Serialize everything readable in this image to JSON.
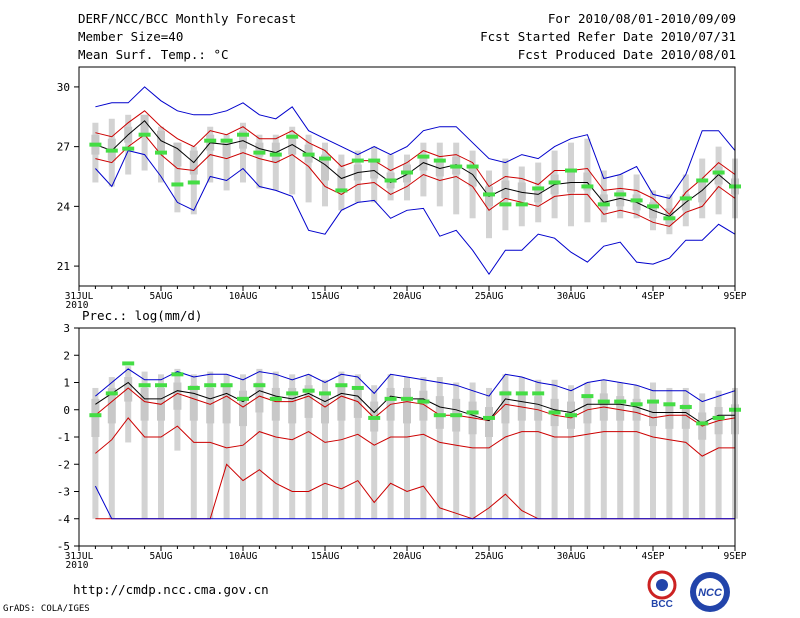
{
  "header": {
    "title": "DERF/NCC/BCC Monthly Forecast",
    "member_size": "Member Size=40",
    "variable": "Mean Surf. Temp.: °C",
    "period": "For 2010/08/01-2010/09/09",
    "started": "Fcst Started Refer Date 2010/07/31",
    "produced": "Fcst Produced Date 2010/08/01"
  },
  "footer": {
    "url": "http://cmdp.ncc.cma.gov.cn",
    "credit": "GrADS: COLA/IGES",
    "logo_left": "BCC",
    "logo_right": "NCC"
  },
  "colors": {
    "max_min": "#0000cc",
    "outer_band": "#cc0000",
    "mean": "#000000",
    "box": "#d3d3d3",
    "obs": "#44dd44"
  },
  "chart_data": [
    {
      "type": "line",
      "title": "Mean Surf. Temp.: °C",
      "ylim": [
        20,
        31
      ],
      "yticks": [
        21,
        24,
        27,
        30
      ],
      "xlim": [
        0,
        40
      ],
      "x_ticks": [
        {
          "x": 0,
          "label": "31JUL",
          "sub": "2010"
        },
        {
          "x": 5,
          "label": "5AUG"
        },
        {
          "x": 10,
          "label": "10AUG"
        },
        {
          "x": 15,
          "label": "15AUG"
        },
        {
          "x": 20,
          "label": "20AUG"
        },
        {
          "x": 25,
          "label": "25AUG"
        },
        {
          "x": 30,
          "label": "30AUG"
        },
        {
          "x": 35,
          "label": "4SEP"
        },
        {
          "x": 40,
          "label": "9SEP"
        }
      ],
      "x": [
        1,
        2,
        3,
        4,
        5,
        6,
        7,
        8,
        9,
        10,
        11,
        12,
        13,
        14,
        15,
        16,
        17,
        18,
        19,
        20,
        21,
        22,
        23,
        24,
        25,
        26,
        27,
        28,
        29,
        30,
        31,
        32,
        33,
        34,
        35,
        36,
        37,
        38,
        39,
        40
      ],
      "series": [
        {
          "name": "max",
          "color": "#0000cc",
          "values": [
            29.0,
            29.2,
            29.2,
            30.0,
            29.3,
            28.8,
            28.6,
            28.6,
            28.8,
            29.2,
            28.6,
            28.4,
            29.0,
            27.8,
            27.4,
            27.0,
            26.6,
            27.0,
            26.6,
            27.0,
            27.8,
            28.0,
            28.0,
            27.2,
            26.4,
            26.2,
            26.6,
            26.4,
            27.0,
            27.4,
            27.6,
            25.4,
            25.6,
            26.0,
            24.6,
            24.4,
            25.6,
            27.8,
            27.8,
            26.8
          ]
        },
        {
          "name": "upper",
          "color": "#cc0000",
          "values": [
            27.7,
            27.5,
            28.2,
            28.8,
            28.0,
            27.4,
            27.0,
            27.8,
            27.6,
            28.0,
            27.4,
            27.4,
            27.8,
            27.2,
            26.8,
            26.0,
            26.3,
            26.3,
            25.8,
            26.2,
            26.8,
            26.5,
            26.6,
            26.2,
            25.0,
            25.5,
            25.4,
            25.1,
            25.8,
            25.8,
            25.9,
            24.8,
            24.9,
            24.8,
            24.4,
            23.6,
            24.7,
            25.4,
            26.2,
            25.6
          ]
        },
        {
          "name": "mean",
          "color": "#000000",
          "values": [
            27.1,
            26.8,
            27.6,
            28.3,
            27.3,
            26.9,
            26.2,
            27.2,
            27.1,
            27.3,
            26.9,
            26.7,
            27.1,
            26.6,
            26.1,
            25.4,
            25.7,
            25.8,
            25.2,
            25.6,
            26.2,
            25.9,
            26.1,
            25.6,
            24.5,
            24.9,
            24.7,
            24.6,
            25.1,
            25.2,
            25.2,
            24.2,
            24.4,
            24.2,
            23.8,
            23.5,
            24.2,
            24.8,
            25.6,
            24.9
          ]
        },
        {
          "name": "lower",
          "color": "#cc0000",
          "values": [
            26.4,
            26.2,
            27.0,
            27.6,
            26.6,
            25.9,
            25.8,
            26.6,
            26.4,
            26.7,
            26.4,
            26.2,
            26.6,
            26.0,
            25.0,
            24.6,
            25.1,
            25.2,
            24.6,
            25.0,
            25.6,
            25.3,
            25.5,
            25.0,
            23.8,
            24.4,
            24.2,
            24.0,
            24.5,
            24.6,
            24.6,
            23.6,
            23.8,
            23.6,
            23.2,
            23.0,
            23.7,
            24.0,
            25.0,
            24.4
          ]
        },
        {
          "name": "min",
          "color": "#0000cc",
          "values": [
            25.9,
            25.0,
            26.8,
            26.6,
            25.5,
            24.2,
            23.8,
            25.5,
            25.3,
            25.9,
            25.0,
            24.8,
            24.5,
            22.8,
            22.6,
            23.8,
            24.2,
            24.3,
            23.4,
            23.8,
            23.9,
            22.5,
            22.8,
            21.8,
            20.6,
            21.8,
            21.8,
            22.6,
            22.4,
            21.7,
            21.2,
            22.0,
            22.2,
            21.2,
            21.1,
            21.4,
            22.3,
            22.3,
            23.1,
            22.6
          ]
        }
      ],
      "boxes": {
        "low": [
          25.2,
          25.0,
          25.6,
          25.8,
          25.2,
          23.7,
          23.6,
          25.2,
          24.8,
          25.2,
          24.9,
          24.8,
          24.6,
          24.2,
          24.0,
          23.8,
          24.2,
          24.2,
          24.3,
          24.3,
          24.5,
          24.0,
          23.6,
          23.4,
          22.4,
          22.8,
          23.0,
          23.2,
          23.4,
          23.0,
          23.2,
          23.2,
          23.4,
          23.4,
          22.8,
          22.6,
          23.0,
          23.4,
          23.6,
          23.4
        ],
        "high": [
          28.2,
          28.4,
          28.6,
          28.6,
          28.0,
          27.2,
          27.0,
          28.0,
          27.6,
          28.2,
          27.6,
          27.6,
          28.0,
          27.6,
          27.2,
          26.6,
          26.8,
          27.0,
          26.6,
          26.6,
          27.2,
          27.2,
          27.2,
          26.8,
          25.8,
          26.4,
          26.0,
          26.2,
          26.8,
          27.2,
          27.4,
          25.8,
          25.6,
          25.6,
          24.8,
          24.6,
          25.6,
          26.4,
          27.0,
          26.4
        ],
        "mid_low": [
          26.6,
          26.3,
          27.2,
          27.5,
          26.8,
          26.0,
          25.6,
          26.8,
          26.5,
          26.9,
          26.5,
          26.2,
          26.6,
          26.2,
          25.3,
          24.8,
          25.3,
          25.4,
          24.9,
          25.2,
          25.8,
          25.5,
          25.6,
          25.0,
          24.0,
          24.4,
          24.3,
          24.2,
          24.6,
          24.7,
          24.8,
          23.8,
          24.0,
          23.8,
          23.4,
          23.1,
          23.8,
          24.2,
          25.1,
          24.6
        ],
        "mid_high": [
          27.6,
          27.4,
          28.0,
          28.6,
          27.8,
          27.2,
          26.8,
          27.6,
          27.4,
          27.8,
          27.2,
          27.2,
          27.6,
          27.1,
          26.6,
          25.9,
          26.1,
          26.2,
          25.7,
          26.1,
          26.6,
          26.3,
          26.5,
          26.1,
          25.0,
          25.3,
          25.2,
          25.0,
          25.6,
          25.7,
          25.7,
          24.6,
          24.8,
          24.6,
          24.2,
          23.9,
          24.6,
          25.2,
          26.0,
          25.4
        ]
      },
      "observed": [
        27.1,
        26.8,
        26.9,
        27.6,
        26.7,
        25.1,
        25.2,
        27.3,
        27.3,
        27.6,
        26.7,
        26.6,
        27.5,
        26.6,
        26.4,
        24.8,
        26.3,
        26.3,
        25.3,
        25.7,
        26.5,
        26.3,
        26.0,
        26.0,
        24.6,
        24.1,
        24.1,
        24.9,
        25.2,
        25.8,
        25.0,
        24.1,
        24.6,
        24.3,
        24.0,
        23.4,
        24.4,
        25.3,
        25.7,
        25.0
      ]
    },
    {
      "type": "line",
      "title": "Prec.: log(mm/d)",
      "ylim": [
        -5,
        3
      ],
      "yticks": [
        -5,
        -4,
        -3,
        -2,
        -1,
        0,
        1,
        2,
        3
      ],
      "xlim": [
        0,
        40
      ],
      "x_ticks": [
        {
          "x": 0,
          "label": "31JUL",
          "sub": "2010"
        },
        {
          "x": 5,
          "label": "5AUG"
        },
        {
          "x": 10,
          "label": "10AUG"
        },
        {
          "x": 15,
          "label": "15AUG"
        },
        {
          "x": 20,
          "label": "20AUG"
        },
        {
          "x": 25,
          "label": "25AUG"
        },
        {
          "x": 30,
          "label": "30AUG"
        },
        {
          "x": 35,
          "label": "4SEP"
        },
        {
          "x": 40,
          "label": "9SEP"
        }
      ],
      "x": [
        1,
        2,
        3,
        4,
        5,
        6,
        7,
        8,
        9,
        10,
        11,
        12,
        13,
        14,
        15,
        16,
        17,
        18,
        19,
        20,
        21,
        22,
        23,
        24,
        25,
        26,
        27,
        28,
        29,
        30,
        31,
        32,
        33,
        34,
        35,
        36,
        37,
        38,
        39,
        40
      ],
      "series": [
        {
          "name": "max",
          "color": "#0000cc",
          "values": [
            0.5,
            1.0,
            1.5,
            1.1,
            1.1,
            1.4,
            1.2,
            1.3,
            1.3,
            1.1,
            1.4,
            1.3,
            1.1,
            1.3,
            1.0,
            1.3,
            1.2,
            0.6,
            1.3,
            1.2,
            1.1,
            1.0,
            0.9,
            0.7,
            0.5,
            1.3,
            1.2,
            1.0,
            0.9,
            0.7,
            1.0,
            1.1,
            1.0,
            0.9,
            0.7,
            0.7,
            0.7,
            0.3,
            0.5,
            0.7
          ]
        },
        {
          "name": "upper",
          "color": "#cc0000",
          "values": [
            -0.2,
            0.3,
            0.8,
            0.3,
            0.2,
            0.6,
            0.4,
            0.2,
            0.5,
            0.1,
            0.5,
            0.3,
            0.3,
            0.5,
            0.1,
            0.5,
            0.3,
            -0.3,
            0.2,
            0.3,
            0.2,
            -0.2,
            -0.2,
            -0.3,
            -0.4,
            0.2,
            0.1,
            0.0,
            -0.2,
            -0.3,
            0.0,
            0.1,
            0.0,
            -0.1,
            -0.3,
            -0.2,
            -0.2,
            -0.6,
            -0.4,
            -0.3
          ]
        },
        {
          "name": "mean",
          "color": "#000000",
          "values": [
            0.2,
            0.6,
            1.0,
            0.4,
            0.4,
            0.7,
            0.6,
            0.4,
            0.6,
            0.3,
            0.7,
            0.5,
            0.4,
            0.6,
            0.3,
            0.6,
            0.5,
            -0.1,
            0.5,
            0.4,
            0.4,
            0.1,
            0.0,
            -0.2,
            -0.4,
            0.4,
            0.3,
            0.2,
            0.0,
            -0.1,
            0.2,
            0.2,
            0.2,
            0.1,
            -0.1,
            -0.1,
            -0.1,
            -0.5,
            -0.2,
            -0.2
          ]
        },
        {
          "name": "lower",
          "color": "#cc0000",
          "values": [
            -1.6,
            -1.1,
            -0.3,
            -1.0,
            -1.0,
            -0.6,
            -1.2,
            -1.2,
            -1.4,
            -1.3,
            -0.8,
            -1.0,
            -1.1,
            -0.8,
            -1.2,
            -1.1,
            -0.9,
            -1.3,
            -1.0,
            -1.0,
            -0.9,
            -1.2,
            -1.3,
            -1.4,
            -1.4,
            -1.0,
            -0.8,
            -0.8,
            -1.0,
            -1.0,
            -0.9,
            -0.8,
            -0.8,
            -0.8,
            -1.0,
            -1.1,
            -1.2,
            -1.7,
            -1.4,
            -1.4
          ]
        },
        {
          "name": "lower-2",
          "color": "#cc0000",
          "values": [
            -4.0,
            -4.0,
            -4.0,
            -4.0,
            -4.0,
            -4.0,
            -4.0,
            -4.0,
            -2.0,
            -2.6,
            -2.2,
            -2.7,
            -3.0,
            -3.0,
            -2.7,
            -2.9,
            -2.6,
            -3.4,
            -2.7,
            -3.0,
            -2.8,
            -3.6,
            -3.8,
            -4.0,
            -3.6,
            -3.1,
            -3.7,
            -4.0,
            -4.0,
            -4.0,
            -4.0,
            -4.0,
            -4.0,
            -4.0,
            -4.0,
            -4.0,
            -4.0,
            -4.0,
            -4.0,
            -4.0
          ]
        },
        {
          "name": "min",
          "color": "#0000cc",
          "values": [
            -2.8,
            -4.0,
            -4.0,
            -4.0,
            -4.0,
            -4.0,
            -4.0,
            -4.0,
            -4.0,
            -4.0,
            -4.0,
            -4.0,
            -4.0,
            -4.0,
            -4.0,
            -4.0,
            -4.0,
            -4.0,
            -4.0,
            -4.0,
            -4.0,
            -4.0,
            -4.0,
            -4.0,
            -4.0,
            -4.0,
            -4.0,
            -4.0,
            -4.0,
            -4.0,
            -4.0,
            -4.0,
            -4.0,
            -4.0,
            -4.0,
            -4.0,
            -4.0,
            -4.0,
            -4.0,
            -4.0
          ]
        }
      ],
      "boxes": {
        "low": [
          -4.0,
          -4.0,
          -1.2,
          -4.0,
          -4.0,
          -1.5,
          -4.0,
          -4.0,
          -4.0,
          -4.0,
          -4.0,
          -4.0,
          -4.0,
          -4.0,
          -4.0,
          -4.0,
          -4.0,
          -4.0,
          -4.0,
          -4.0,
          -4.0,
          -4.0,
          -4.0,
          -4.0,
          -4.0,
          -4.0,
          -4.0,
          -4.0,
          -4.0,
          -4.0,
          -4.0,
          -4.0,
          -4.0,
          -4.0,
          -4.0,
          -4.0,
          -4.0,
          -4.0,
          -4.0,
          -4.0
        ],
        "high": [
          0.8,
          1.2,
          1.6,
          1.4,
          1.3,
          1.5,
          1.3,
          1.4,
          1.3,
          1.3,
          1.5,
          1.4,
          1.3,
          1.3,
          1.1,
          1.4,
          1.3,
          0.9,
          1.3,
          1.2,
          1.2,
          1.2,
          1.0,
          1.0,
          0.8,
          1.3,
          1.2,
          1.1,
          1.1,
          0.9,
          1.0,
          1.1,
          1.0,
          0.9,
          1.0,
          0.8,
          0.8,
          0.6,
          0.7,
          0.8
        ],
        "mid_low": [
          -1.0,
          -0.5,
          0.3,
          -0.4,
          -0.4,
          0.0,
          -0.4,
          -0.5,
          -0.5,
          -0.6,
          -0.1,
          -0.4,
          -0.5,
          -0.3,
          -0.5,
          -0.4,
          -0.3,
          -0.8,
          -0.4,
          -0.5,
          -0.4,
          -0.7,
          -0.8,
          -0.9,
          -1.0,
          -0.5,
          -0.4,
          -0.4,
          -0.6,
          -0.7,
          -0.5,
          -0.4,
          -0.4,
          -0.4,
          -0.6,
          -0.7,
          -0.7,
          -1.1,
          -0.9,
          -0.9
        ],
        "mid_high": [
          0.4,
          0.8,
          1.2,
          0.8,
          0.8,
          1.0,
          0.9,
          0.8,
          0.9,
          0.7,
          1.0,
          0.8,
          0.8,
          0.9,
          0.6,
          0.9,
          0.8,
          0.3,
          0.8,
          0.8,
          0.7,
          0.5,
          0.4,
          0.3,
          0.1,
          0.7,
          0.6,
          0.5,
          0.4,
          0.3,
          0.5,
          0.6,
          0.5,
          0.4,
          0.3,
          0.2,
          0.2,
          -0.1,
          0.1,
          0.2
        ]
      },
      "observed": [
        -0.2,
        0.6,
        1.7,
        0.9,
        0.9,
        1.3,
        0.8,
        0.9,
        0.9,
        0.4,
        0.9,
        0.4,
        0.6,
        0.7,
        0.6,
        0.9,
        0.8,
        -0.3,
        0.4,
        0.4,
        0.3,
        -0.2,
        -0.2,
        -0.1,
        -0.3,
        0.6,
        0.6,
        0.6,
        -0.1,
        -0.2,
        0.5,
        0.3,
        0.3,
        0.2,
        0.3,
        0.2,
        0.1,
        -0.5,
        -0.3,
        0.0
      ]
    }
  ]
}
